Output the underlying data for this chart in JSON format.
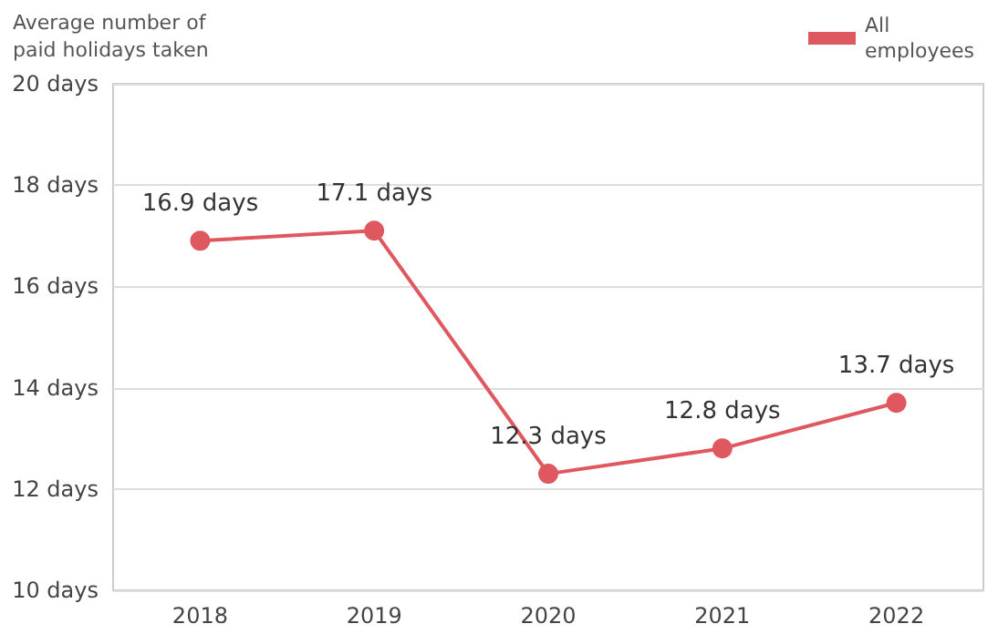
{
  "chart_data": {
    "type": "line",
    "ylabel": "Average number of paid holidays taken",
    "categories": [
      "2018",
      "2019",
      "2020",
      "2021",
      "2022"
    ],
    "series": [
      {
        "name": "All employees",
        "color": "#e0585f",
        "values": [
          16.9,
          17.1,
          12.3,
          12.8,
          13.7
        ],
        "value_labels": [
          "16.9 days",
          "17.1 days",
          "12.3 days",
          "12.8 days",
          "13.7 days"
        ]
      }
    ],
    "ylim": [
      10,
      20
    ],
    "yticks": [
      {
        "value": 10,
        "label": "10 days"
      },
      {
        "value": 12,
        "label": "12 days"
      },
      {
        "value": 14,
        "label": "14 days"
      },
      {
        "value": 16,
        "label": "16 days"
      },
      {
        "value": 18,
        "label": "18 days"
      },
      {
        "value": 20,
        "label": "20 days"
      }
    ],
    "grid": "y",
    "legend": "top right",
    "marker": "circle",
    "line_style": "solid"
  }
}
